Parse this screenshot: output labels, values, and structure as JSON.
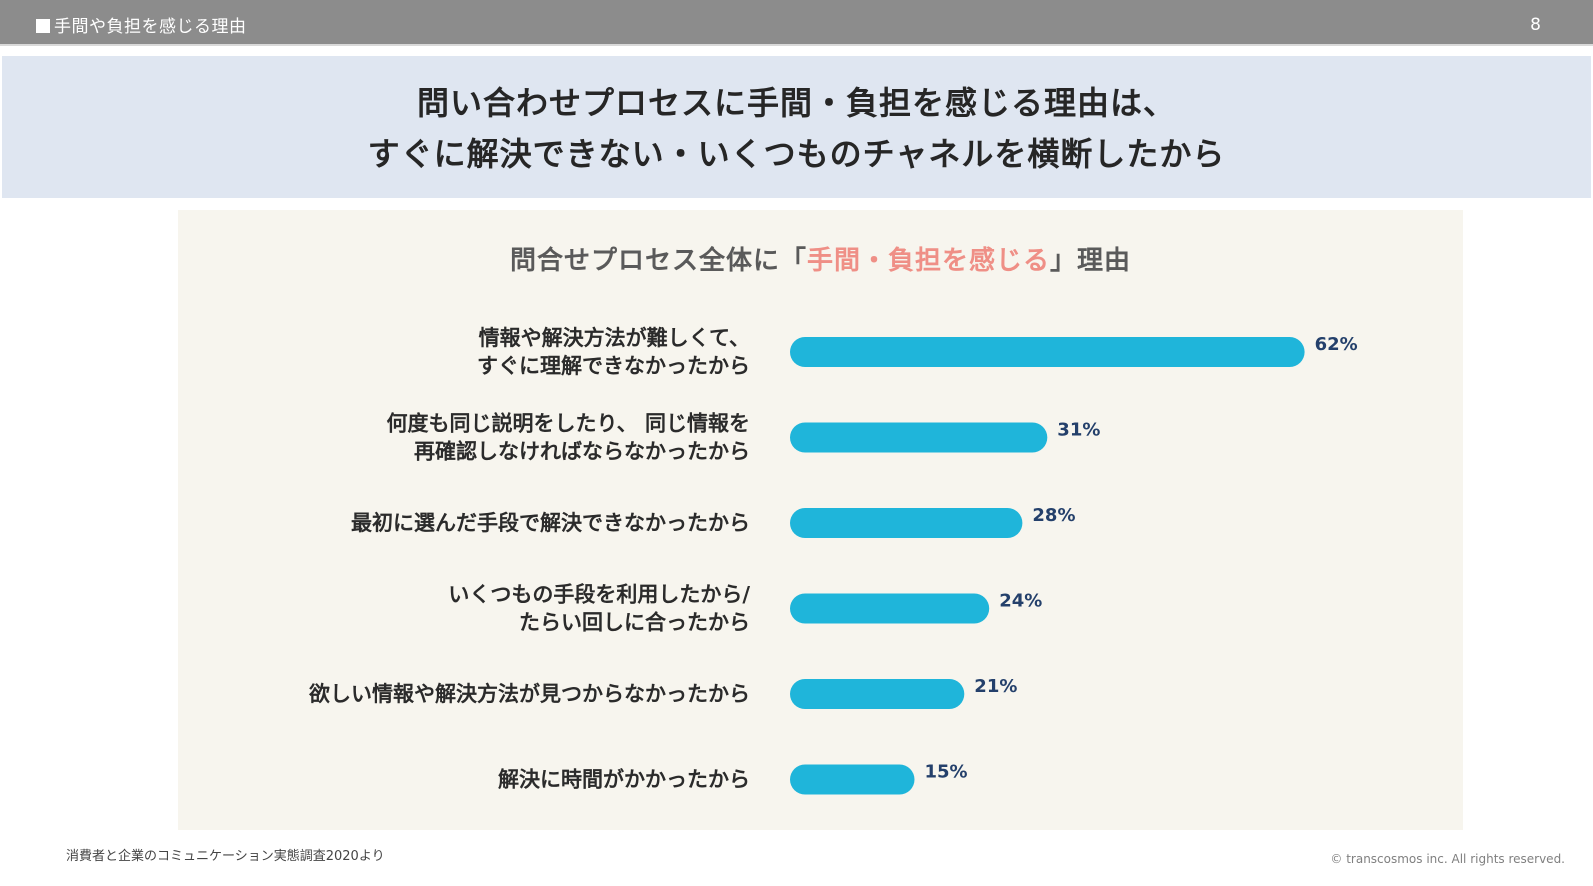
{
  "header": {
    "section_title": "手間や負担を感じる理由",
    "page_number": "8"
  },
  "headline": {
    "line1": "問い合わせプロセスに手間・負担を感じる理由は、",
    "line2": "すぐに解決できない・いくつものチャネルを横断したから"
  },
  "chart_data": {
    "type": "bar",
    "orientation": "horizontal",
    "title_prefix": "問合せプロセス全体に「",
    "title_highlight": "手間・負担を感じる",
    "title_suffix": "」理由",
    "categories": [
      [
        "情報や解決方法が難しくて、",
        "すぐに理解できなかったから"
      ],
      [
        "何度も同じ説明をしたり、 同じ情報を",
        "再確認しなければならなかったから"
      ],
      [
        "最初に選んだ手段で解決できなかったから"
      ],
      [
        "いくつもの手段を利用したから/",
        "たらい回しに合ったから"
      ],
      [
        "欲しい情報や解決方法が見つからなかったから"
      ],
      [
        "解決に時間がかかったから"
      ]
    ],
    "values": [
      62,
      31,
      28,
      24,
      21,
      15
    ],
    "value_labels": [
      "62%",
      "31%",
      "28%",
      "24%",
      "21%",
      "15%"
    ],
    "unit": "%",
    "xlim": [
      0,
      100
    ],
    "grid": false,
    "bar_color": "#1fb5da",
    "title_highlight_color": "#ef8f86"
  },
  "footer": {
    "source": "消費者と企業のコミュニケーション実態調査2020より",
    "copyright": "© transcosmos inc. All rights reserved."
  }
}
